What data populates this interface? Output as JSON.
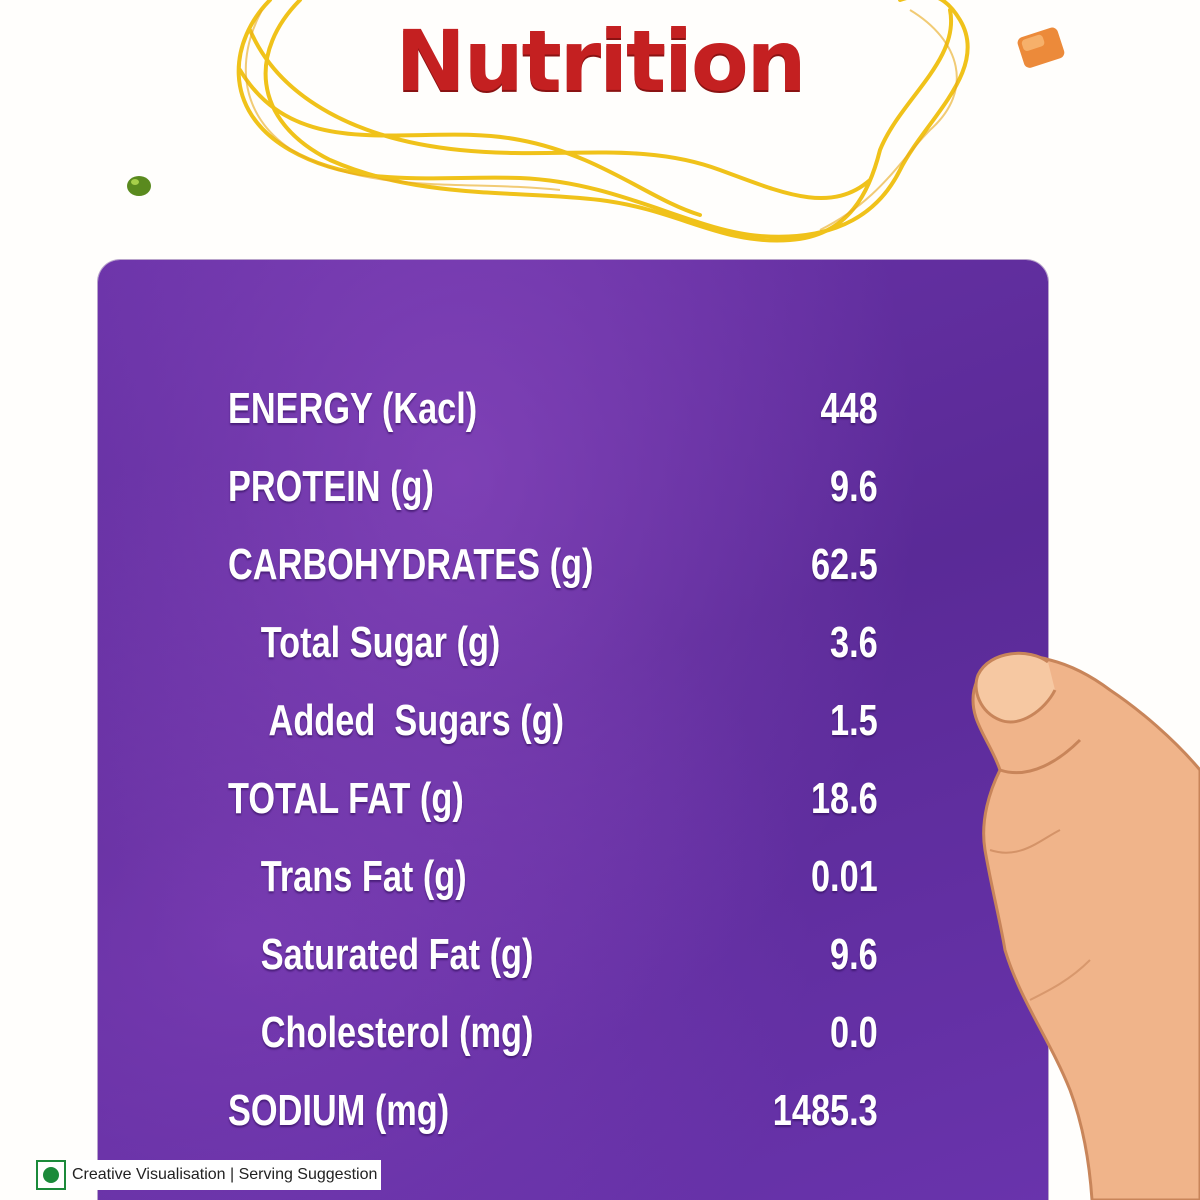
{
  "title": "Nutrition",
  "nutrients": [
    {
      "label": "ENERGY (Kacl)",
      "value": "448",
      "level": 0
    },
    {
      "label": "PROTEIN (g)",
      "value": "9.6",
      "level": 0
    },
    {
      "label": "CARBOHYDRATES (g)",
      "value": "62.5",
      "level": 0
    },
    {
      "label": "Total Sugar (g)",
      "value": "3.6",
      "level": 1
    },
    {
      "label": "Added  Sugars (g)",
      "value": "1.5",
      "level": 2
    },
    {
      "label": "TOTAL FAT (g)",
      "value": "18.6",
      "level": 0
    },
    {
      "label": "Trans Fat (g)",
      "value": "0.01",
      "level": 1
    },
    {
      "label": "Saturated Fat (g)",
      "value": "9.6",
      "level": 1
    },
    {
      "label": "Cholesterol (mg)",
      "value": "0.0",
      "level": 1
    },
    {
      "label": "SODIUM (mg)",
      "value": "1485.3",
      "level": 0
    }
  ],
  "footer": {
    "note": "Creative Visualisation | Serving Suggestion",
    "veg_mark_icon": "veg-symbol-icon",
    "veg_color": "#1b8a3a"
  },
  "colors": {
    "title": "#c42021",
    "card": "#5e2c9c",
    "noodle": "#f0c21a",
    "skin": "#f0b48a"
  }
}
